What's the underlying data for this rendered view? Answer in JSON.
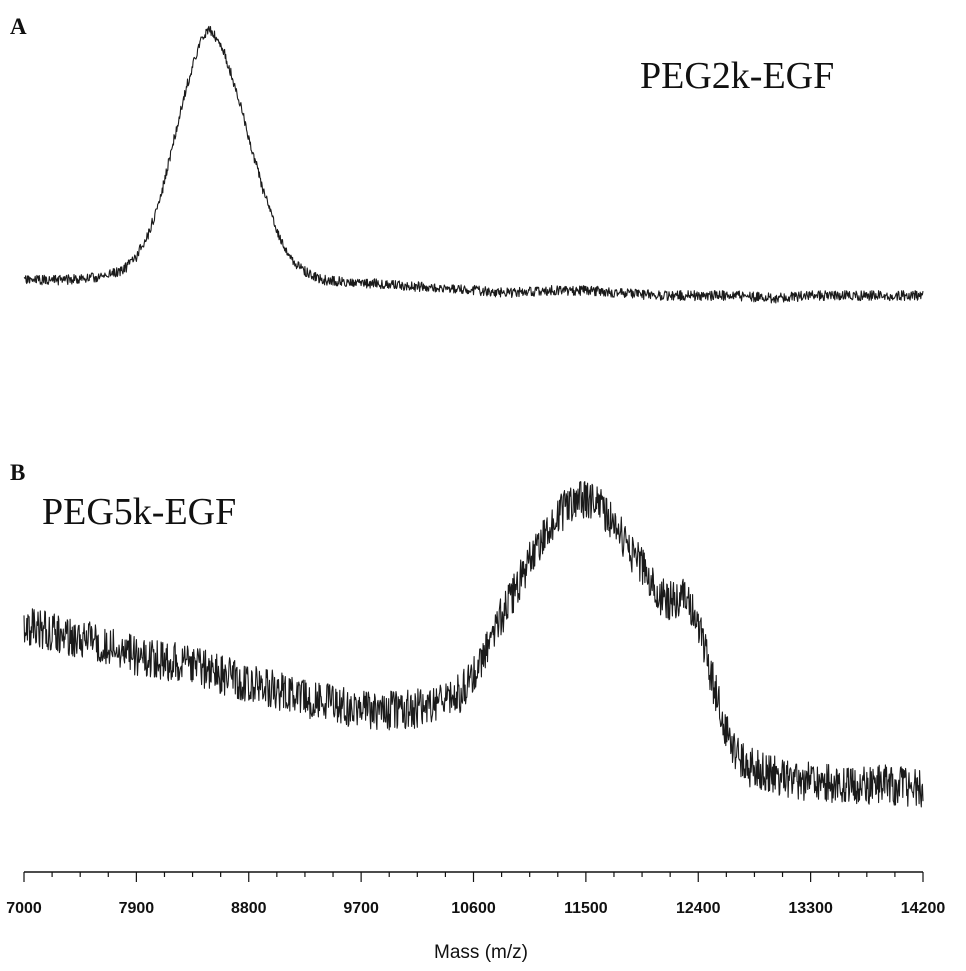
{
  "chart_data": {
    "type": "line",
    "panels": [
      {
        "letter": "A",
        "name": "PEG2k-EGF",
        "series_values_description": "relative intensity, 0 = baseline, 1 = peak maximum",
        "x": [
          7000,
          7300,
          7600,
          7800,
          7900,
          8000,
          8100,
          8200,
          8300,
          8400,
          8450,
          8500,
          8600,
          8700,
          8800,
          8900,
          9000,
          9100,
          9200,
          9300,
          9400,
          9700,
          10000,
          10300,
          10600,
          10900,
          11200,
          11500,
          11800,
          12100,
          12400,
          12700,
          13000,
          13300,
          13600,
          13900,
          14200
        ],
        "y": [
          0.0,
          0.0,
          0.01,
          0.04,
          0.09,
          0.18,
          0.33,
          0.54,
          0.74,
          0.9,
          0.95,
          0.96,
          0.88,
          0.73,
          0.55,
          0.37,
          0.22,
          0.11,
          0.05,
          0.02,
          0.0,
          -0.01,
          -0.02,
          -0.03,
          -0.04,
          -0.05,
          -0.04,
          -0.04,
          -0.05,
          -0.06,
          -0.06,
          -0.06,
          -0.07,
          -0.06,
          -0.06,
          -0.06,
          -0.06
        ]
      },
      {
        "letter": "B",
        "name": "PEG5k-EGF",
        "series_values_description": "relative intensity, 0 = lowest baseline, 1 = peak maximum",
        "x": [
          7000,
          7300,
          7600,
          7900,
          8200,
          8500,
          8800,
          9100,
          9400,
          9700,
          10000,
          10300,
          10500,
          10600,
          10700,
          10800,
          10900,
          11000,
          11100,
          11200,
          11300,
          11400,
          11500,
          11600,
          11700,
          11800,
          11900,
          12000,
          12100,
          12200,
          12300,
          12400,
          12500,
          12600,
          12700,
          12800,
          13000,
          13300,
          13600,
          13900,
          14200
        ],
        "y": [
          0.58,
          0.55,
          0.52,
          0.48,
          0.46,
          0.43,
          0.39,
          0.36,
          0.33,
          0.3,
          0.3,
          0.32,
          0.36,
          0.42,
          0.51,
          0.59,
          0.67,
          0.75,
          0.83,
          0.9,
          0.95,
          0.98,
          0.99,
          0.97,
          0.92,
          0.86,
          0.8,
          0.74,
          0.67,
          0.66,
          0.68,
          0.58,
          0.42,
          0.27,
          0.17,
          0.12,
          0.09,
          0.07,
          0.06,
          0.06,
          0.05
        ]
      }
    ],
    "xlabel": "Mass (m/z)",
    "xlim": [
      7000,
      14200
    ],
    "xticks": [
      7000,
      7900,
      8800,
      9700,
      10600,
      11500,
      12400,
      13300,
      14200
    ],
    "minor_ticks_per_interval": 3,
    "grid": false,
    "legend": "none",
    "line_color": "#1a1a1a"
  }
}
